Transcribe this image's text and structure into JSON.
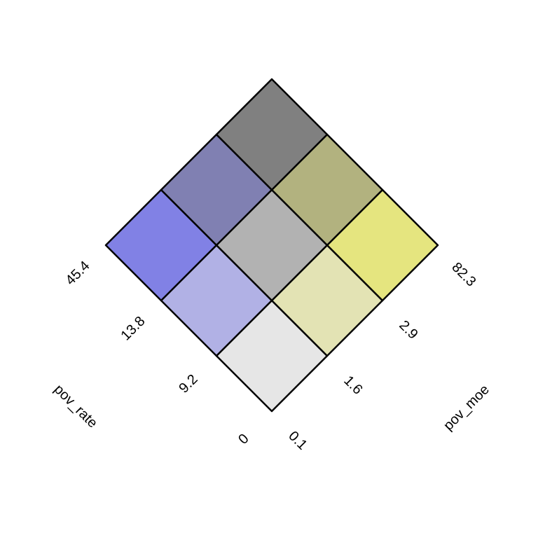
{
  "chart_data": {
    "type": "heatmap",
    "subtype": "bivariate-legend",
    "x_variable": "pov_rate",
    "y_variable": "pov_moe",
    "x_breaks": [
      "0",
      "9.2",
      "13.8",
      "45.4"
    ],
    "y_breaks": [
      "0.1",
      "1.6",
      "2.9",
      "82.3"
    ],
    "colors": [
      [
        "#e6e6e6",
        "#e3e3b4",
        "#e5e57f"
      ],
      [
        "#b1b1e5",
        "#b2b2b2",
        "#b2b27f"
      ],
      [
        "#8181e5",
        "#8080b2",
        "#808080"
      ]
    ]
  }
}
